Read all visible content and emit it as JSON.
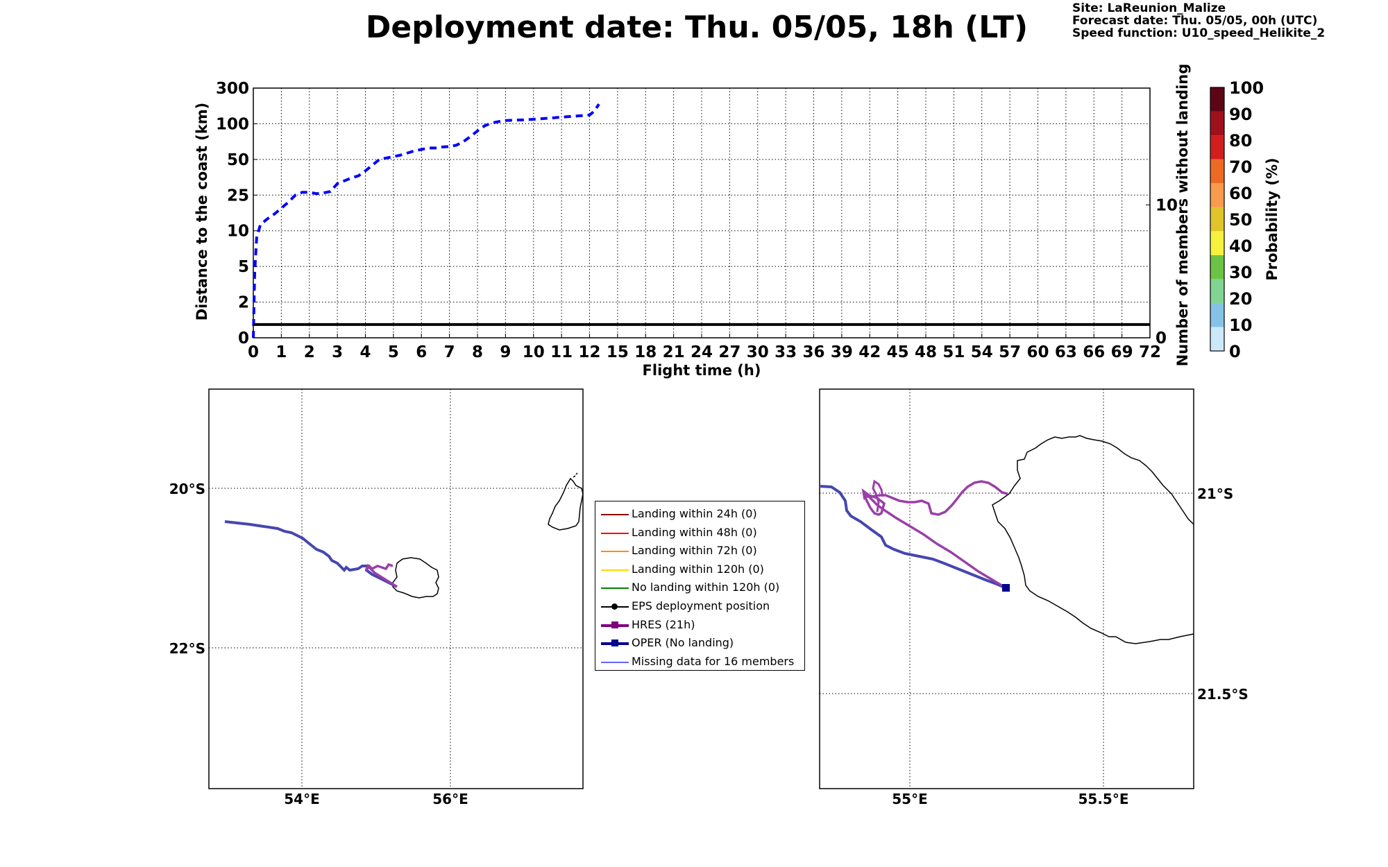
{
  "title": "Deployment date: Thu. 05/05, 18h (LT)",
  "info": {
    "site": "Site: LaReunion_Malize",
    "forecast": "Forecast date: Thu. 05/05, 00h (UTC)",
    "speed": "Speed function: U10_speed_Helikite_2"
  },
  "colors": {
    "distance_line": "#0000ff",
    "members_line": "#000000",
    "hres": "#9a3fa8",
    "oper": "#4646b0",
    "oper_marker": "#00008b",
    "missing": "#6464ff"
  },
  "chart_data": [
    {
      "type": "line",
      "xlabel": "Flight time (h)",
      "ylabel": "Distance to the coast (km)",
      "ylabel_right": "Number of members without landing",
      "x_ticks": [
        "0",
        "1",
        "2",
        "3",
        "4",
        "5",
        "6",
        "7",
        "8",
        "9",
        "10",
        "11",
        "12",
        "15",
        "18",
        "21",
        "24",
        "27",
        "30",
        "33",
        "36",
        "39",
        "42",
        "45",
        "48",
        "51",
        "54",
        "57",
        "60",
        "63",
        "66",
        "69",
        "72"
      ],
      "y_ticks": [
        "0",
        "2",
        "5",
        "10",
        "25",
        "50",
        "100",
        "300"
      ],
      "y_right_ticks": [
        "0",
        "10"
      ],
      "grid": true,
      "series": [
        {
          "style": "dashed",
          "x": [
            0,
            0.05,
            0.12,
            0.25,
            0.5,
            0.75,
            1.0,
            1.25,
            1.5,
            1.75,
            2.0,
            2.25,
            2.5,
            2.75,
            3.0,
            3.25,
            3.5,
            3.75,
            4.0,
            4.25,
            4.5,
            4.75,
            5.0,
            5.25,
            5.5,
            5.75,
            6.0,
            6.25,
            6.5,
            6.75,
            7.0,
            7.25,
            7.5,
            7.75,
            8.0,
            8.25,
            8.5,
            8.75,
            9.0,
            9.5,
            10.0,
            10.5,
            11.0,
            11.5,
            12.0,
            12.5,
            13.0
          ],
          "y": [
            0,
            4.5,
            9,
            12.5,
            15,
            17,
            19.5,
            22,
            25,
            27,
            27,
            26,
            26.5,
            27.5,
            33,
            35,
            37,
            38.5,
            42,
            46,
            50,
            52,
            54,
            56,
            59,
            62,
            64,
            66,
            66,
            67.5,
            68,
            70,
            75,
            82,
            90,
            97,
            104,
            112,
            118,
            121,
            125,
            131,
            137,
            143,
            149,
            170,
            210
          ]
        },
        {
          "style": "solid",
          "x": [
            0,
            72
          ],
          "y_right": [
            1,
            1
          ]
        }
      ]
    },
    {
      "type": "heatmap",
      "colorbar_label": "Probability (%)",
      "ticks": [
        "0",
        "10",
        "20",
        "30",
        "40",
        "50",
        "60",
        "70",
        "80",
        "90",
        "100"
      ],
      "colors": [
        "#cce9fa",
        "#84c2e6",
        "#7fd591",
        "#6cc343",
        "#f6f23c",
        "#e0c52a",
        "#fa9a4c",
        "#ee6a24",
        "#d21e1e",
        "#a0101c",
        "#5e0515"
      ]
    }
  ],
  "map_left": {
    "lat_labels": [
      "20°S",
      "22°S"
    ],
    "lon_labels": [
      "54°E",
      "56°E"
    ]
  },
  "map_right": {
    "lat_labels": [
      "21°S",
      "21.5°S"
    ],
    "lon_labels": [
      "55°E",
      "55.5°E"
    ]
  },
  "legend": [
    {
      "label": "Landing within 24h (0)",
      "color": "#8b0000",
      "marker": "none"
    },
    {
      "label": "Landing within 48h (0)",
      "color": "#ff0000",
      "marker": "none"
    },
    {
      "label": "Landing within 72h (0)",
      "color": "#ff8c00",
      "marker": "none"
    },
    {
      "label": "Landing within 120h (0)",
      "color": "#ffd700",
      "marker": "none"
    },
    {
      "label": "No landing within 120h (0)",
      "color": "#008000",
      "marker": "none"
    },
    {
      "label": "EPS deployment position",
      "color": "#000000",
      "marker": "dot"
    },
    {
      "label": "HRES (21h)",
      "color": "#800080",
      "marker": "square"
    },
    {
      "label": "OPER (No landing)",
      "color": "#00008b",
      "marker": "square"
    },
    {
      "label": "Missing data for 16 members",
      "color": "#6464ff",
      "marker": "none"
    }
  ]
}
